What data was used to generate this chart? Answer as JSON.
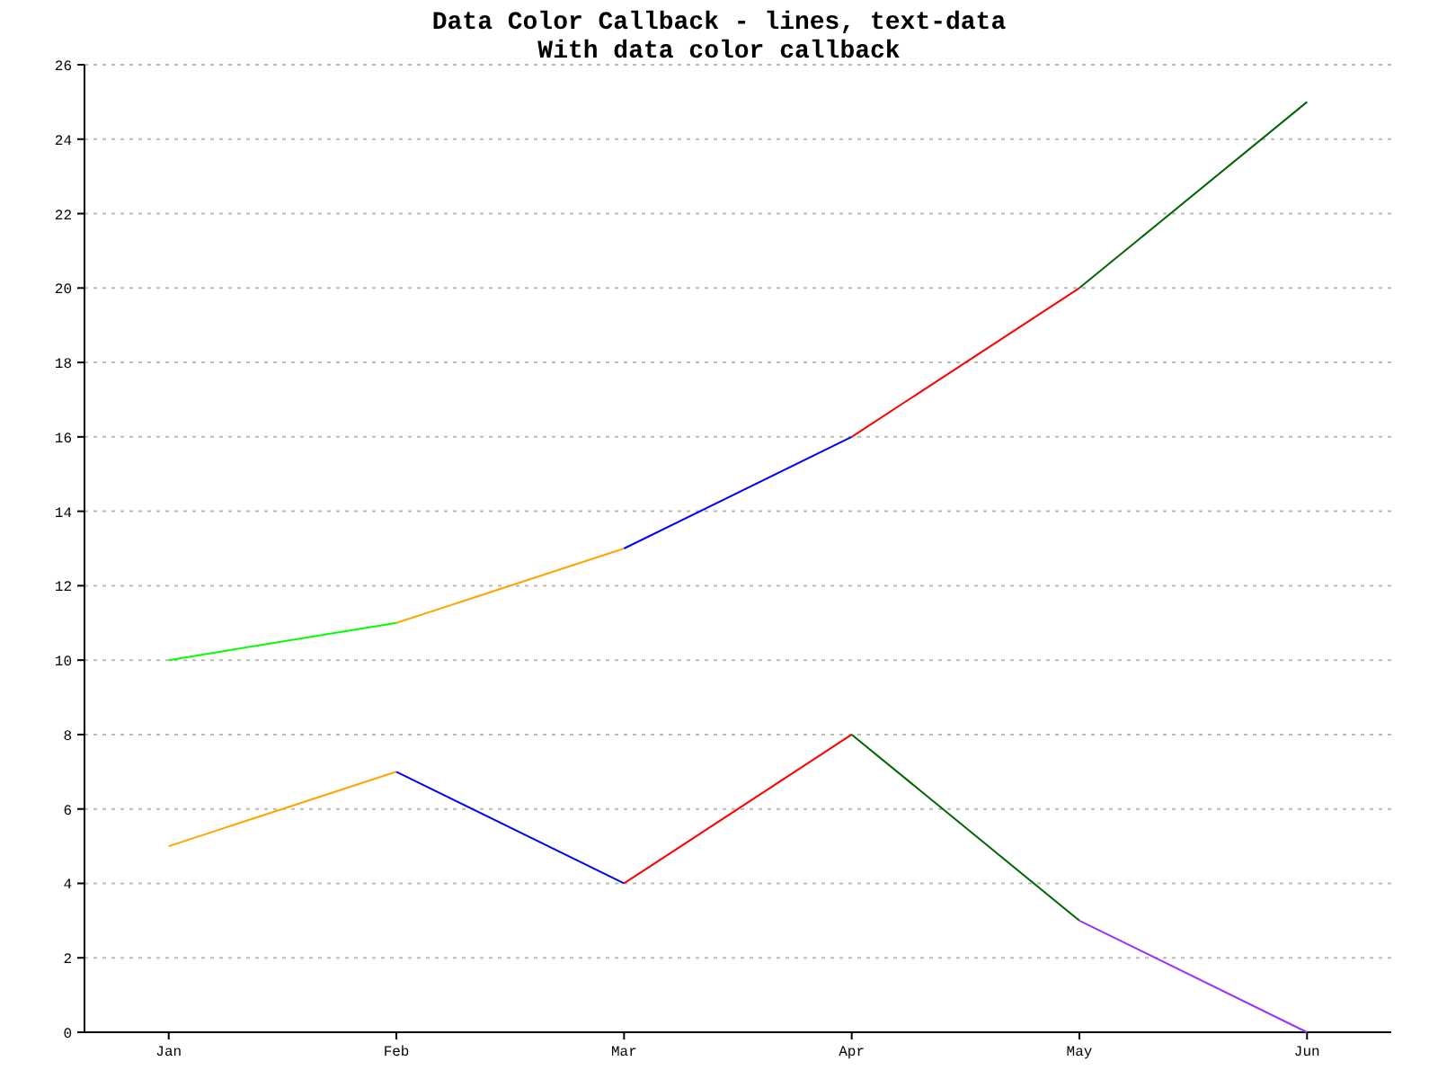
{
  "chart_data": {
    "type": "line",
    "title": "Data Color Callback - lines, text-data",
    "subtitle": "With data color callback",
    "categories": [
      "Jan",
      "Feb",
      "Mar",
      "Apr",
      "May",
      "Jun"
    ],
    "series": [
      {
        "color": "#00ff00",
        "values": [
          10,
          11,
          null,
          null,
          null,
          null
        ]
      },
      {
        "color": "#ffa500",
        "values": [
          null,
          11,
          13,
          null,
          null,
          null
        ]
      },
      {
        "color": "#0000ff",
        "values": [
          null,
          null,
          13,
          16,
          null,
          null
        ]
      },
      {
        "color": "#ff0000",
        "values": [
          null,
          null,
          null,
          16,
          20,
          null
        ]
      },
      {
        "color": "#006400",
        "values": [
          null,
          null,
          null,
          null,
          20,
          25
        ]
      },
      {
        "color": "#ffa500",
        "values": [
          5,
          7,
          null,
          null,
          null,
          null
        ]
      },
      {
        "color": "#0000ff",
        "values": [
          null,
          7,
          4,
          null,
          null,
          null
        ]
      },
      {
        "color": "#ff0000",
        "values": [
          null,
          null,
          4,
          8,
          null,
          null
        ]
      },
      {
        "color": "#006400",
        "values": [
          null,
          null,
          null,
          8,
          3,
          null
        ]
      },
      {
        "color": "#9933ff",
        "values": [
          null,
          null,
          null,
          null,
          3,
          0
        ]
      }
    ],
    "ylim": [
      0,
      26
    ],
    "yticks": [
      0,
      2,
      4,
      6,
      8,
      10,
      12,
      14,
      16,
      18,
      20,
      22,
      24,
      26
    ],
    "grid": "y"
  }
}
